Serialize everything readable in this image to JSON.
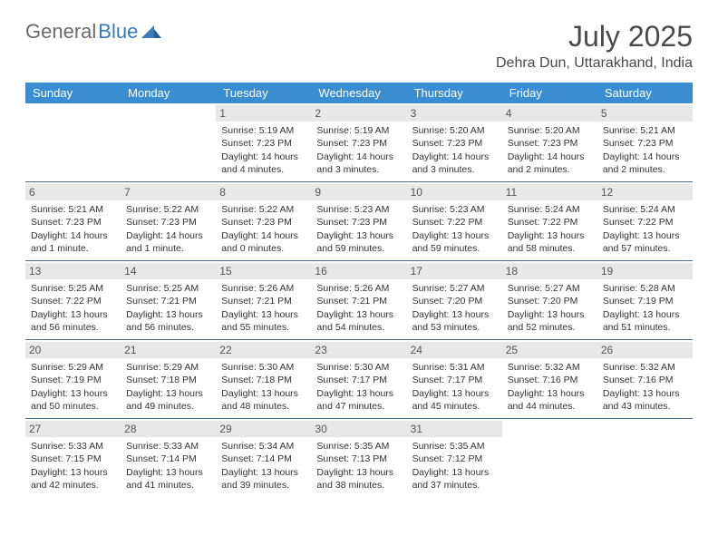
{
  "logo": {
    "text1": "General",
    "text2": "Blue"
  },
  "title": "July 2025",
  "location": "Dehra Dun, Uttarakhand, India",
  "colors": {
    "header_bg": "#3a8dd0",
    "header_text": "#ffffff",
    "daynum_bg": "#e8e8e8",
    "row_border": "#4a6a8a",
    "logo_gray": "#6b6b6b",
    "logo_blue": "#3a7ab8"
  },
  "weekdays": [
    "Sunday",
    "Monday",
    "Tuesday",
    "Wednesday",
    "Thursday",
    "Friday",
    "Saturday"
  ],
  "weeks": [
    [
      {
        "day": "",
        "sunrise": "",
        "sunset": "",
        "daylight": ""
      },
      {
        "day": "",
        "sunrise": "",
        "sunset": "",
        "daylight": ""
      },
      {
        "day": "1",
        "sunrise": "Sunrise: 5:19 AM",
        "sunset": "Sunset: 7:23 PM",
        "daylight": "Daylight: 14 hours and 4 minutes."
      },
      {
        "day": "2",
        "sunrise": "Sunrise: 5:19 AM",
        "sunset": "Sunset: 7:23 PM",
        "daylight": "Daylight: 14 hours and 3 minutes."
      },
      {
        "day": "3",
        "sunrise": "Sunrise: 5:20 AM",
        "sunset": "Sunset: 7:23 PM",
        "daylight": "Daylight: 14 hours and 3 minutes."
      },
      {
        "day": "4",
        "sunrise": "Sunrise: 5:20 AM",
        "sunset": "Sunset: 7:23 PM",
        "daylight": "Daylight: 14 hours and 2 minutes."
      },
      {
        "day": "5",
        "sunrise": "Sunrise: 5:21 AM",
        "sunset": "Sunset: 7:23 PM",
        "daylight": "Daylight: 14 hours and 2 minutes."
      }
    ],
    [
      {
        "day": "6",
        "sunrise": "Sunrise: 5:21 AM",
        "sunset": "Sunset: 7:23 PM",
        "daylight": "Daylight: 14 hours and 1 minute."
      },
      {
        "day": "7",
        "sunrise": "Sunrise: 5:22 AM",
        "sunset": "Sunset: 7:23 PM",
        "daylight": "Daylight: 14 hours and 1 minute."
      },
      {
        "day": "8",
        "sunrise": "Sunrise: 5:22 AM",
        "sunset": "Sunset: 7:23 PM",
        "daylight": "Daylight: 14 hours and 0 minutes."
      },
      {
        "day": "9",
        "sunrise": "Sunrise: 5:23 AM",
        "sunset": "Sunset: 7:23 PM",
        "daylight": "Daylight: 13 hours and 59 minutes."
      },
      {
        "day": "10",
        "sunrise": "Sunrise: 5:23 AM",
        "sunset": "Sunset: 7:22 PM",
        "daylight": "Daylight: 13 hours and 59 minutes."
      },
      {
        "day": "11",
        "sunrise": "Sunrise: 5:24 AM",
        "sunset": "Sunset: 7:22 PM",
        "daylight": "Daylight: 13 hours and 58 minutes."
      },
      {
        "day": "12",
        "sunrise": "Sunrise: 5:24 AM",
        "sunset": "Sunset: 7:22 PM",
        "daylight": "Daylight: 13 hours and 57 minutes."
      }
    ],
    [
      {
        "day": "13",
        "sunrise": "Sunrise: 5:25 AM",
        "sunset": "Sunset: 7:22 PM",
        "daylight": "Daylight: 13 hours and 56 minutes."
      },
      {
        "day": "14",
        "sunrise": "Sunrise: 5:25 AM",
        "sunset": "Sunset: 7:21 PM",
        "daylight": "Daylight: 13 hours and 56 minutes."
      },
      {
        "day": "15",
        "sunrise": "Sunrise: 5:26 AM",
        "sunset": "Sunset: 7:21 PM",
        "daylight": "Daylight: 13 hours and 55 minutes."
      },
      {
        "day": "16",
        "sunrise": "Sunrise: 5:26 AM",
        "sunset": "Sunset: 7:21 PM",
        "daylight": "Daylight: 13 hours and 54 minutes."
      },
      {
        "day": "17",
        "sunrise": "Sunrise: 5:27 AM",
        "sunset": "Sunset: 7:20 PM",
        "daylight": "Daylight: 13 hours and 53 minutes."
      },
      {
        "day": "18",
        "sunrise": "Sunrise: 5:27 AM",
        "sunset": "Sunset: 7:20 PM",
        "daylight": "Daylight: 13 hours and 52 minutes."
      },
      {
        "day": "19",
        "sunrise": "Sunrise: 5:28 AM",
        "sunset": "Sunset: 7:19 PM",
        "daylight": "Daylight: 13 hours and 51 minutes."
      }
    ],
    [
      {
        "day": "20",
        "sunrise": "Sunrise: 5:29 AM",
        "sunset": "Sunset: 7:19 PM",
        "daylight": "Daylight: 13 hours and 50 minutes."
      },
      {
        "day": "21",
        "sunrise": "Sunrise: 5:29 AM",
        "sunset": "Sunset: 7:18 PM",
        "daylight": "Daylight: 13 hours and 49 minutes."
      },
      {
        "day": "22",
        "sunrise": "Sunrise: 5:30 AM",
        "sunset": "Sunset: 7:18 PM",
        "daylight": "Daylight: 13 hours and 48 minutes."
      },
      {
        "day": "23",
        "sunrise": "Sunrise: 5:30 AM",
        "sunset": "Sunset: 7:17 PM",
        "daylight": "Daylight: 13 hours and 47 minutes."
      },
      {
        "day": "24",
        "sunrise": "Sunrise: 5:31 AM",
        "sunset": "Sunset: 7:17 PM",
        "daylight": "Daylight: 13 hours and 45 minutes."
      },
      {
        "day": "25",
        "sunrise": "Sunrise: 5:32 AM",
        "sunset": "Sunset: 7:16 PM",
        "daylight": "Daylight: 13 hours and 44 minutes."
      },
      {
        "day": "26",
        "sunrise": "Sunrise: 5:32 AM",
        "sunset": "Sunset: 7:16 PM",
        "daylight": "Daylight: 13 hours and 43 minutes."
      }
    ],
    [
      {
        "day": "27",
        "sunrise": "Sunrise: 5:33 AM",
        "sunset": "Sunset: 7:15 PM",
        "daylight": "Daylight: 13 hours and 42 minutes."
      },
      {
        "day": "28",
        "sunrise": "Sunrise: 5:33 AM",
        "sunset": "Sunset: 7:14 PM",
        "daylight": "Daylight: 13 hours and 41 minutes."
      },
      {
        "day": "29",
        "sunrise": "Sunrise: 5:34 AM",
        "sunset": "Sunset: 7:14 PM",
        "daylight": "Daylight: 13 hours and 39 minutes."
      },
      {
        "day": "30",
        "sunrise": "Sunrise: 5:35 AM",
        "sunset": "Sunset: 7:13 PM",
        "daylight": "Daylight: 13 hours and 38 minutes."
      },
      {
        "day": "31",
        "sunrise": "Sunrise: 5:35 AM",
        "sunset": "Sunset: 7:12 PM",
        "daylight": "Daylight: 13 hours and 37 minutes."
      },
      {
        "day": "",
        "sunrise": "",
        "sunset": "",
        "daylight": ""
      },
      {
        "day": "",
        "sunrise": "",
        "sunset": "",
        "daylight": ""
      }
    ]
  ]
}
